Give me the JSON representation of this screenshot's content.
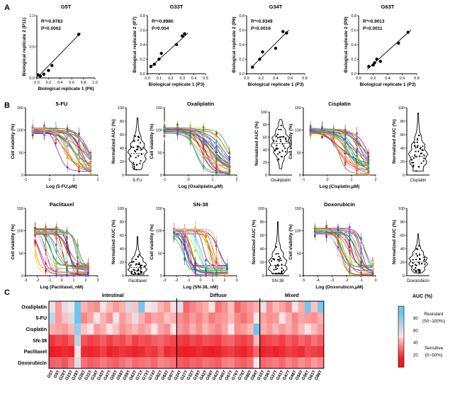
{
  "panel_labels": [
    "A",
    "B",
    "C"
  ],
  "chart_data": [
    {
      "id": "A1",
      "type": "scatter",
      "title": "G5T",
      "xlabel": "Biological replicate 1 (P6)",
      "ylabel": "Biological replicate 2 (P11)",
      "xlim": [
        0,
        1
      ],
      "ylim": [
        0,
        1
      ],
      "xticks": [
        "0.0",
        "0.2",
        "0.4",
        "0.6",
        "0.8",
        "1.0"
      ],
      "yticks": [
        "0.0",
        "0.5",
        "1.0"
      ],
      "annotations": [
        "R²=0.9783",
        "P=0.0002"
      ],
      "points": [
        [
          0.02,
          0.05
        ],
        [
          0.06,
          0.03
        ],
        [
          0.12,
          0.06
        ],
        [
          0.2,
          0.12
        ],
        [
          0.26,
          0.2
        ],
        [
          0.72,
          0.7
        ]
      ],
      "fit": [
        [
          0.02,
          0.02
        ],
        [
          0.75,
          0.72
        ]
      ]
    },
    {
      "id": "A2",
      "type": "scatter",
      "title": "G33T",
      "xlabel": "Biological replicate 1 (P3)",
      "ylabel": "Biological replicate 2 (P7)",
      "xlim": [
        0,
        0.5
      ],
      "ylim": [
        0,
        0.8
      ],
      "xticks": [
        "0.0",
        "0.1",
        "0.2",
        "0.3",
        "0.4",
        "0.5"
      ],
      "yticks": [
        "0.0",
        "0.2",
        "0.4",
        "0.6",
        "0.8"
      ],
      "annotations": [
        "R²=0.8980",
        "P=0.004"
      ],
      "points": [
        [
          0.03,
          0.1
        ],
        [
          0.06,
          0.13
        ],
        [
          0.1,
          0.2
        ],
        [
          0.12,
          0.28
        ],
        [
          0.25,
          0.4
        ],
        [
          0.3,
          0.52
        ],
        [
          0.32,
          0.55
        ]
      ],
      "fit": [
        [
          0.02,
          0.08
        ],
        [
          0.35,
          0.56
        ]
      ]
    },
    {
      "id": "A3",
      "type": "scatter",
      "title": "G34T",
      "xlabel": "Biological replicate 1 (P3)",
      "ylabel": "Biological replicate 2 (P6)",
      "xlim": [
        0,
        0.8
      ],
      "ylim": [
        0,
        0.8
      ],
      "xticks": [
        "0.0",
        "0.2",
        "0.4",
        "0.6",
        "0.8"
      ],
      "yticks": [
        "0.0",
        "0.2",
        "0.4",
        "0.6",
        "0.8"
      ],
      "annotations": [
        "R²=0.9349",
        "P=0.0016"
      ],
      "points": [
        [
          0.08,
          0.09
        ],
        [
          0.18,
          0.2
        ],
        [
          0.22,
          0.3
        ],
        [
          0.4,
          0.35
        ],
        [
          0.5,
          0.58
        ],
        [
          0.55,
          0.56
        ]
      ],
      "fit": [
        [
          0.06,
          0.08
        ],
        [
          0.58,
          0.6
        ]
      ]
    },
    {
      "id": "A4",
      "type": "scatter",
      "title": "G63T",
      "xlabel": "Biological replicate 1 (P3)",
      "ylabel": "Biological replicate 2 (P8)",
      "xlim": [
        0,
        0.8
      ],
      "ylim": [
        0,
        0.8
      ],
      "xticks": [
        "0.0",
        "0.2",
        "0.4",
        "0.6",
        "0.8"
      ],
      "yticks": [
        "0.0",
        "0.2",
        "0.4",
        "0.6",
        "0.8"
      ],
      "annotations": [
        "R²=0.9013",
        "P=0.0011"
      ],
      "points": [
        [
          0.14,
          0.1
        ],
        [
          0.2,
          0.12
        ],
        [
          0.22,
          0.15
        ],
        [
          0.25,
          0.2
        ],
        [
          0.3,
          0.17
        ],
        [
          0.55,
          0.42
        ],
        [
          0.68,
          0.57
        ]
      ],
      "fit": [
        [
          0.12,
          0.06
        ],
        [
          0.72,
          0.6
        ]
      ]
    },
    {
      "id": "B1",
      "type": "line",
      "title": "5-FU",
      "xlabel": "Log (5-FU,μM)",
      "ylabel": "Cell viability (%)",
      "xlim": [
        -1,
        2
      ],
      "ylim": [
        0,
        150
      ],
      "xticks": [
        "-1",
        "0",
        "1",
        "2"
      ],
      "yticks": [
        "0",
        "50",
        "100",
        "150"
      ],
      "curves": {
        "n": 26,
        "ic50_range": [
          0.3,
          1.6
        ],
        "xmin": -0.7,
        "xmax": 1.7
      }
    },
    {
      "id": "V1",
      "type": "violin",
      "ylabel": "Normalized AUC (%)",
      "xlabel": "5-FU",
      "ylim": [
        0,
        100
      ],
      "yticks": [
        "0",
        "20",
        "40",
        "60",
        "80",
        "100"
      ],
      "median": 32,
      "range": [
        8,
        85
      ]
    },
    {
      "id": "B2",
      "type": "line",
      "title": "Oxaliplatin",
      "xlabel": "Log (Oxaliplatin,μM)",
      "ylabel": "Cell viability (%)",
      "xlim": [
        -1,
        2
      ],
      "ylim": [
        0,
        150
      ],
      "xticks": [
        "-1",
        "0",
        "1",
        "2"
      ],
      "yticks": [
        "0",
        "50",
        "100",
        "150"
      ],
      "curves": {
        "n": 30,
        "ic50_range": [
          0.2,
          1.7
        ],
        "xmin": -1.0,
        "xmax": 1.7
      }
    },
    {
      "id": "V2",
      "type": "violin",
      "ylabel": "Normalized AUC (%)",
      "xlabel": "Oxaliplatin",
      "ylim": [
        0,
        100
      ],
      "yticks": [
        "0",
        "20",
        "40",
        "60",
        "80",
        "100"
      ],
      "median": 50,
      "range": [
        10,
        88
      ]
    },
    {
      "id": "B3",
      "type": "line",
      "title": "Cisplatin",
      "xlabel": "Log (Cisplatin,μM)",
      "ylabel": "Cell viability (%)",
      "xlim": [
        -1,
        2
      ],
      "ylim": [
        0,
        150
      ],
      "xticks": [
        "-1",
        "0",
        "1",
        "2"
      ],
      "yticks": [
        "0",
        "50",
        "100",
        "150"
      ],
      "curves": {
        "n": 28,
        "ic50_range": [
          0.4,
          1.7
        ],
        "xmin": -0.7,
        "xmax": 1.7
      }
    },
    {
      "id": "V3",
      "type": "violin",
      "ylabel": "Normalized AUC (%)",
      "xlabel": "Cisplatin",
      "ylim": [
        0,
        100
      ],
      "yticks": [
        "0",
        "20",
        "40",
        "60",
        "80",
        "100"
      ],
      "median": 28,
      "range": [
        6,
        92
      ]
    },
    {
      "id": "B4",
      "type": "line",
      "title": "Paclitaxel",
      "xlabel": "Log (Paclitaxel, nM)",
      "ylabel": "Cell viability (%)",
      "xlim": [
        -3,
        3
      ],
      "ylim": [
        0,
        150
      ],
      "xticks": [
        "-3",
        "-2",
        "-1",
        "0",
        "1",
        "2",
        "3"
      ],
      "yticks": [
        "0",
        "50",
        "100",
        "150"
      ],
      "curves": {
        "n": 26,
        "ic50_range": [
          -2.3,
          1.5
        ],
        "xmin": -2.2,
        "xmax": 2.2
      }
    },
    {
      "id": "V4",
      "type": "violin",
      "ylabel": "Normalized AUC (%)",
      "xlabel": "Paclitaxel",
      "ylim": [
        0,
        100
      ],
      "yticks": [
        "0",
        "20",
        "40",
        "60",
        "80",
        "100"
      ],
      "median": 12,
      "range": [
        2,
        58
      ]
    },
    {
      "id": "B5",
      "type": "line",
      "title": "SN-38",
      "xlabel": "Log (SN-38, nM)",
      "ylabel": "Cell viability (%)",
      "xlim": [
        -3,
        3
      ],
      "ylim": [
        0,
        150
      ],
      "xticks": [
        "-3",
        "-2",
        "-1",
        "0",
        "1",
        "2",
        "3"
      ],
      "yticks": [
        "0",
        "50",
        "100",
        "150"
      ],
      "curves": {
        "n": 28,
        "ic50_range": [
          -1.5,
          1.8
        ],
        "xmin": -2.2,
        "xmax": 2.2
      }
    },
    {
      "id": "V5",
      "type": "violin",
      "ylabel": "Normalized AUC (%)",
      "xlabel": "SN-38",
      "ylim": [
        0,
        100
      ],
      "yticks": [
        "0",
        "20",
        "40",
        "60",
        "80",
        "100"
      ],
      "median": 15,
      "range": [
        3,
        80
      ]
    },
    {
      "id": "B6",
      "type": "line",
      "title": "Doxorubicin",
      "xlabel": "Log (Doxorubicin,μM)",
      "ylabel": "Cell viability (%)",
      "xlim": [
        -5,
        0
      ],
      "ylim": [
        0,
        150
      ],
      "xticks": [
        "-5",
        "-4",
        "-3",
        "-2",
        "-1",
        "0"
      ],
      "yticks": [
        "0",
        "50",
        "100",
        "150"
      ],
      "curves": {
        "n": 26,
        "ic50_range": [
          -2.8,
          -0.6
        ],
        "xmin": -4.2,
        "xmax": -0.2
      }
    },
    {
      "id": "V6",
      "type": "violin",
      "ylabel": "Normalized AUC (%)",
      "xlabel": "Doxorubicin",
      "ylim": [
        0,
        100
      ],
      "yticks": [
        "0",
        "20",
        "40",
        "60",
        "80",
        "100"
      ],
      "median": 20,
      "range": [
        4,
        62
      ]
    },
    {
      "id": "C",
      "type": "heatmap",
      "groups": [
        {
          "name": "Intestinal",
          "count": 20
        },
        {
          "name": "Diffuse",
          "count": 13
        },
        {
          "name": "Mixed",
          "count": 10
        }
      ],
      "rows": [
        "Oxaliplatin",
        "5-FU",
        "Cisplatin",
        "SN-38",
        "Paclitaxel",
        "Doxorubicin"
      ],
      "columns": [
        "G5T",
        "G9T",
        "G20T",
        "G23T",
        "G28T",
        "G30T",
        "G31T",
        "G34T",
        "G43T",
        "G47T",
        "G55T",
        "G58T",
        "G59T",
        "G63T",
        "G71T",
        "G73T",
        "G74T",
        "G82T",
        "G83T",
        "G87T",
        "G24T",
        "G27T",
        "G32T",
        "G39T",
        "G42T",
        "G50T",
        "G62T",
        "G65T",
        "G67T",
        "G76T",
        "G78T",
        "G80T",
        "G84T",
        "G33T",
        "G36T",
        "G37T",
        "G41T",
        "G47T",
        "G48T",
        "G54T",
        "G56T",
        "G61T",
        "G86T"
      ],
      "colorbar": {
        "title": "AUC (%)",
        "ticks": [
          "80",
          "60",
          "40",
          "20"
        ],
        "range": [
          0,
          100
        ]
      },
      "legend": {
        "resistant": "Resistant",
        "resistant_range": "(50~100%)",
        "sensitive": "Sensitive",
        "sensitive_range": "(0~50%)",
        "resistant_color": "#5cb9e8",
        "sensitive_color": "#ee2a24"
      },
      "values": [
        [
          55,
          40,
          58,
          52,
          90,
          45,
          40,
          38,
          52,
          46,
          40,
          44,
          62,
          48,
          88,
          50,
          55,
          45,
          40,
          52,
          58,
          30,
          36,
          40,
          44,
          50,
          32,
          38,
          48,
          30,
          36,
          40,
          44,
          55,
          38,
          46,
          42,
          36,
          50,
          44,
          88,
          48,
          86
        ],
        [
          68,
          40,
          48,
          60,
          92,
          36,
          42,
          50,
          45,
          38,
          52,
          40,
          46,
          58,
          44,
          36,
          42,
          40,
          48,
          44,
          38,
          34,
          40,
          36,
          42,
          34,
          38,
          40,
          46,
          36,
          32,
          38,
          50,
          42,
          38,
          40,
          50,
          44,
          36,
          42,
          40,
          38,
          44
        ],
        [
          44,
          42,
          40,
          46,
          80,
          48,
          50,
          40,
          44,
          52,
          48,
          38,
          42,
          46,
          40,
          44,
          50,
          42,
          38,
          50,
          40,
          36,
          44,
          38,
          46,
          40,
          36,
          42,
          50,
          38,
          40,
          46,
          92,
          44,
          40,
          46,
          40,
          44,
          38,
          46,
          52,
          46,
          40
        ],
        [
          20,
          24,
          22,
          28,
          70,
          26,
          22,
          24,
          28,
          22,
          26,
          24,
          30,
          22,
          26,
          24,
          28,
          30,
          26,
          24,
          22,
          20,
          24,
          22,
          26,
          24,
          22,
          28,
          30,
          24,
          22,
          26,
          46,
          22,
          24,
          26,
          22,
          28,
          24,
          30,
          26,
          32,
          28
        ],
        [
          14,
          16,
          18,
          16,
          50,
          18,
          16,
          18,
          22,
          16,
          18,
          20,
          18,
          16,
          18,
          22,
          20,
          26,
          18,
          20,
          16,
          14,
          16,
          18,
          16,
          14,
          16,
          20,
          22,
          18,
          16,
          20,
          30,
          16,
          18,
          16,
          18,
          22,
          20,
          18,
          24,
          22,
          20
        ],
        [
          28,
          30,
          26,
          34,
          60,
          32,
          28,
          30,
          34,
          30,
          28,
          32,
          36,
          30,
          32,
          34,
          30,
          36,
          34,
          32,
          28,
          26,
          30,
          28,
          32,
          30,
          28,
          34,
          36,
          30,
          28,
          32,
          50,
          30,
          32,
          34,
          30,
          36,
          32,
          38,
          34,
          40,
          36
        ]
      ]
    }
  ]
}
